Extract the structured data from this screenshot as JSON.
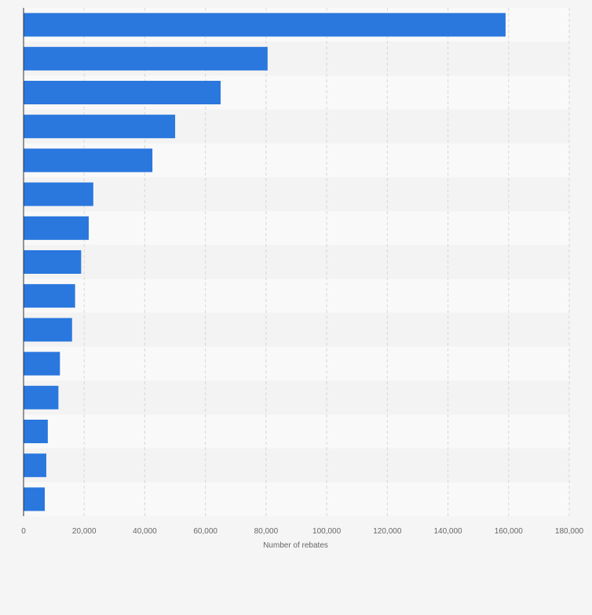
{
  "chart_data": {
    "type": "bar",
    "orientation": "horizontal",
    "title": "",
    "xlabel": "Number of rebates",
    "ylabel": "",
    "categories": [
      "",
      "",
      "",
      "",
      "",
      "",
      "",
      "",
      "",
      "",
      "",
      "",
      "",
      "",
      ""
    ],
    "values": [
      159000,
      80500,
      65000,
      50000,
      42500,
      23000,
      21500,
      19000,
      17000,
      16000,
      12000,
      11500,
      8000,
      7500,
      7000
    ],
    "xlim": [
      0,
      180000
    ],
    "xticks": [
      "0",
      "20,000",
      "40,000",
      "60,000",
      "80,000",
      "100,000",
      "120,000",
      "140,000",
      "160,000",
      "180,000"
    ],
    "grid": true,
    "legend": "none",
    "colors": {
      "bar": "#2a77de",
      "band_light": "#f9f9f9",
      "band_dark": "#f3f3f3",
      "background": "#f5f5f5",
      "grid": "#d8d8d8",
      "axis": "#333333",
      "tick_text": "#666666"
    }
  }
}
